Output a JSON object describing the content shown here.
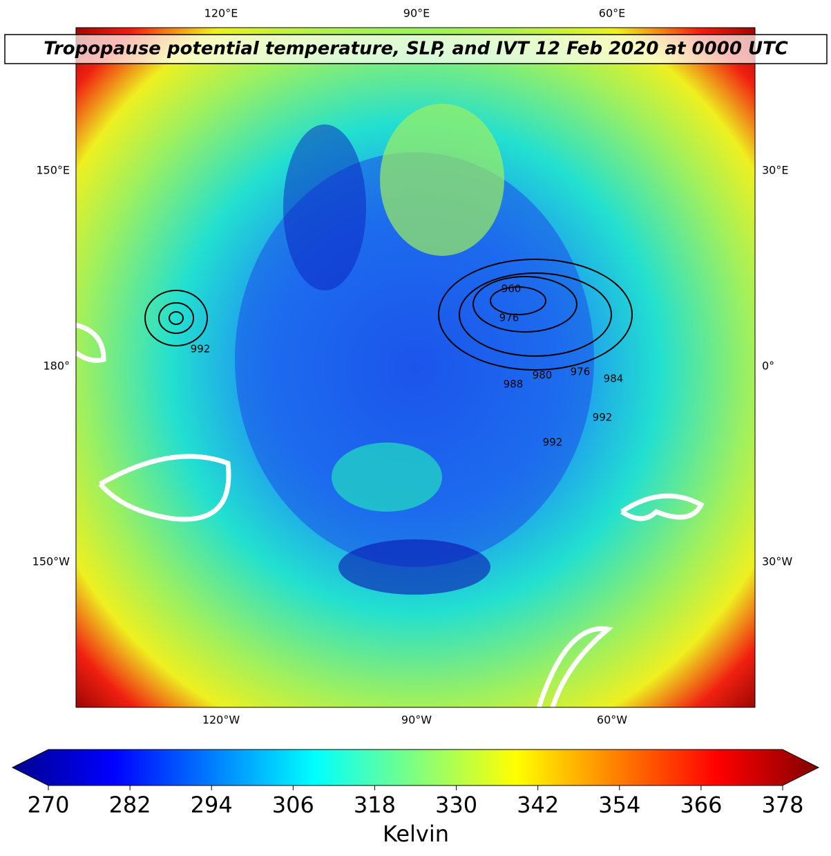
{
  "map": {
    "title": "Tropopause potential temperature, SLP, and IVT 12 Feb 2020 at 0000 UTC",
    "top_labels": [
      "120°E",
      "90°E",
      "60°E"
    ],
    "bottom_labels": [
      "120°W",
      "90°W",
      "60°W"
    ],
    "left_labels": [
      "150°E",
      "180°",
      "150°W"
    ],
    "right_labels": [
      "30°E",
      "0°",
      "30°W"
    ],
    "contour_labels": [
      960,
      976,
      980,
      976,
      984,
      992,
      992,
      988,
      992
    ]
  },
  "chart_data": {
    "type": "colorbar",
    "label": "Kelvin",
    "lim": [
      270,
      378
    ],
    "ticks": [
      270,
      282,
      294,
      306,
      318,
      330,
      342,
      354,
      366,
      378
    ]
  }
}
